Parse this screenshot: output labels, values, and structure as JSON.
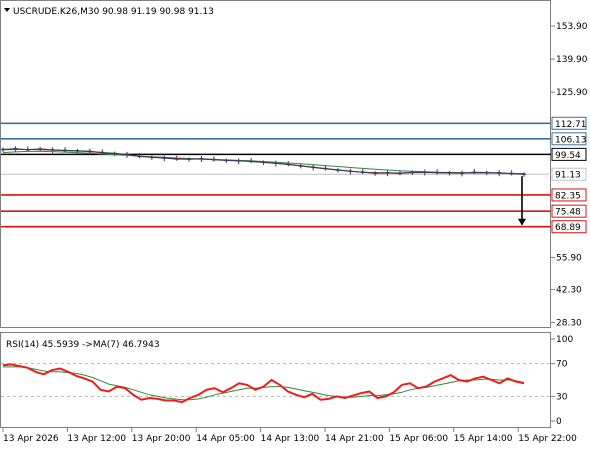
{
  "header": {
    "symbol_line": "USCRUDE.K26,M30  90.98 91.19 90.98 91.13",
    "indicator_line": "RSI(14) 45.5939  ->MA(7) 46.7943"
  },
  "colors": {
    "candle_dark": "#3a3a5c",
    "ma_red": "#c0303a",
    "ma_green": "#2e8b3c",
    "resistance": "#3c6fa0",
    "pivot": "#000000",
    "support": "#e01010",
    "current_price": "#808080",
    "rsi_line": "#ee1c1c",
    "rsi_ma": "#2e8b3c",
    "border": "#808080"
  },
  "chart_data": [
    {
      "type": "line",
      "title": "USCRUDE.K26,M30  90.98 91.19 90.98 91.13",
      "ylim": [
        26.0,
        164.5
      ],
      "y_ticks": [
        153.9,
        139.9,
        125.9,
        55.9,
        42.3,
        28.3
      ],
      "x_tick_labels": [
        "13 Apr 2026",
        "13 Apr 12:00",
        "13 Apr 20:00",
        "14 Apr 05:00",
        "14 Apr 13:00",
        "14 Apr 21:00",
        "15 Apr 06:00",
        "15 Apr 14:00",
        "15 Apr 22:00"
      ],
      "price_series": [
        101.6,
        101.9,
        101.5,
        101.8,
        101.4,
        101.2,
        101.0,
        100.8,
        100.3,
        99.9,
        99.5,
        98.7,
        98.3,
        98.0,
        97.6,
        97.5,
        97.7,
        97.3,
        97.0,
        96.8,
        96.6,
        96.2,
        95.8,
        95.3,
        94.7,
        94.1,
        93.5,
        92.9,
        92.4,
        92.0,
        91.6,
        91.7,
        91.5,
        91.9,
        92.0,
        91.8,
        91.7,
        91.6,
        91.9,
        91.8,
        91.7,
        91.4,
        91.13
      ],
      "ma_red": [
        101.5,
        101.6,
        101.6,
        101.5,
        101.4,
        101.2,
        101.0,
        100.7,
        100.3,
        99.9,
        99.3,
        98.8,
        98.4,
        98.1,
        97.8,
        97.6,
        97.5,
        97.3,
        97.1,
        96.8,
        96.5,
        96.1,
        95.7,
        95.2,
        94.6,
        94.0,
        93.4,
        92.9,
        92.4,
        92.0,
        91.8,
        91.7,
        91.7,
        91.8,
        91.8,
        91.8,
        91.7,
        91.7,
        91.7,
        91.7,
        91.6,
        91.4,
        91.3
      ],
      "ma_green": [
        100.3,
        100.6,
        100.8,
        100.8,
        100.7,
        100.5,
        100.3,
        100.0,
        99.7,
        99.4,
        99.1,
        98.8,
        98.5,
        98.3,
        98.0,
        97.8,
        97.6,
        97.4,
        97.2,
        97.0,
        96.8,
        96.5,
        96.2,
        95.9,
        95.6,
        95.2,
        94.8,
        94.4,
        94.0,
        93.6,
        93.2,
        92.9,
        92.6,
        92.4,
        92.2,
        92.0,
        91.9,
        91.8,
        91.7,
        91.7,
        91.6,
        91.5,
        91.4
      ],
      "levels": {
        "resistance": [
          112.71,
          106.13
        ],
        "pivot": 99.54,
        "current": 91.13,
        "support": [
          82.35,
          75.48,
          68.89
        ]
      },
      "level_labels": {
        "resistance": [
          "112.71",
          "106.13"
        ],
        "pivot": "99.54",
        "current": "91.13",
        "support": [
          "82.35",
          "75.48",
          "68.89"
        ]
      },
      "arrow_target": 68.89
    },
    {
      "type": "line",
      "title": "RSI(14) 45.5939  ->MA(7) 46.7943",
      "ylim": [
        0,
        100
      ],
      "y_ticks": [
        100,
        70,
        30,
        0
      ],
      "levels": [
        70,
        30
      ],
      "rsi": [
        68,
        69,
        67,
        65,
        60,
        57,
        62,
        64,
        60,
        55,
        52,
        48,
        38,
        36,
        42,
        40,
        32,
        26,
        28,
        27,
        25,
        25,
        23,
        28,
        32,
        38,
        40,
        35,
        40,
        46,
        44,
        38,
        42,
        50,
        44,
        36,
        32,
        29,
        33,
        26,
        27,
        30,
        28,
        31,
        34,
        36,
        28,
        30,
        35,
        44,
        46,
        40,
        42,
        48,
        52,
        56,
        50,
        48,
        52,
        54,
        50,
        46,
        52,
        48,
        46
      ],
      "rsi_ma": [
        66,
        66,
        66,
        65,
        63,
        61,
        60,
        60,
        59,
        58,
        56,
        53,
        49,
        45,
        43,
        41,
        38,
        35,
        32,
        30,
        28,
        27,
        26,
        26,
        27,
        29,
        32,
        34,
        36,
        38,
        40,
        40,
        41,
        42,
        42,
        41,
        39,
        37,
        35,
        33,
        31,
        30,
        29,
        29,
        30,
        31,
        31,
        32,
        33,
        35,
        38,
        40,
        41,
        43,
        45,
        47,
        49,
        50,
        50,
        51,
        51,
        50,
        50,
        49,
        47
      ]
    }
  ]
}
